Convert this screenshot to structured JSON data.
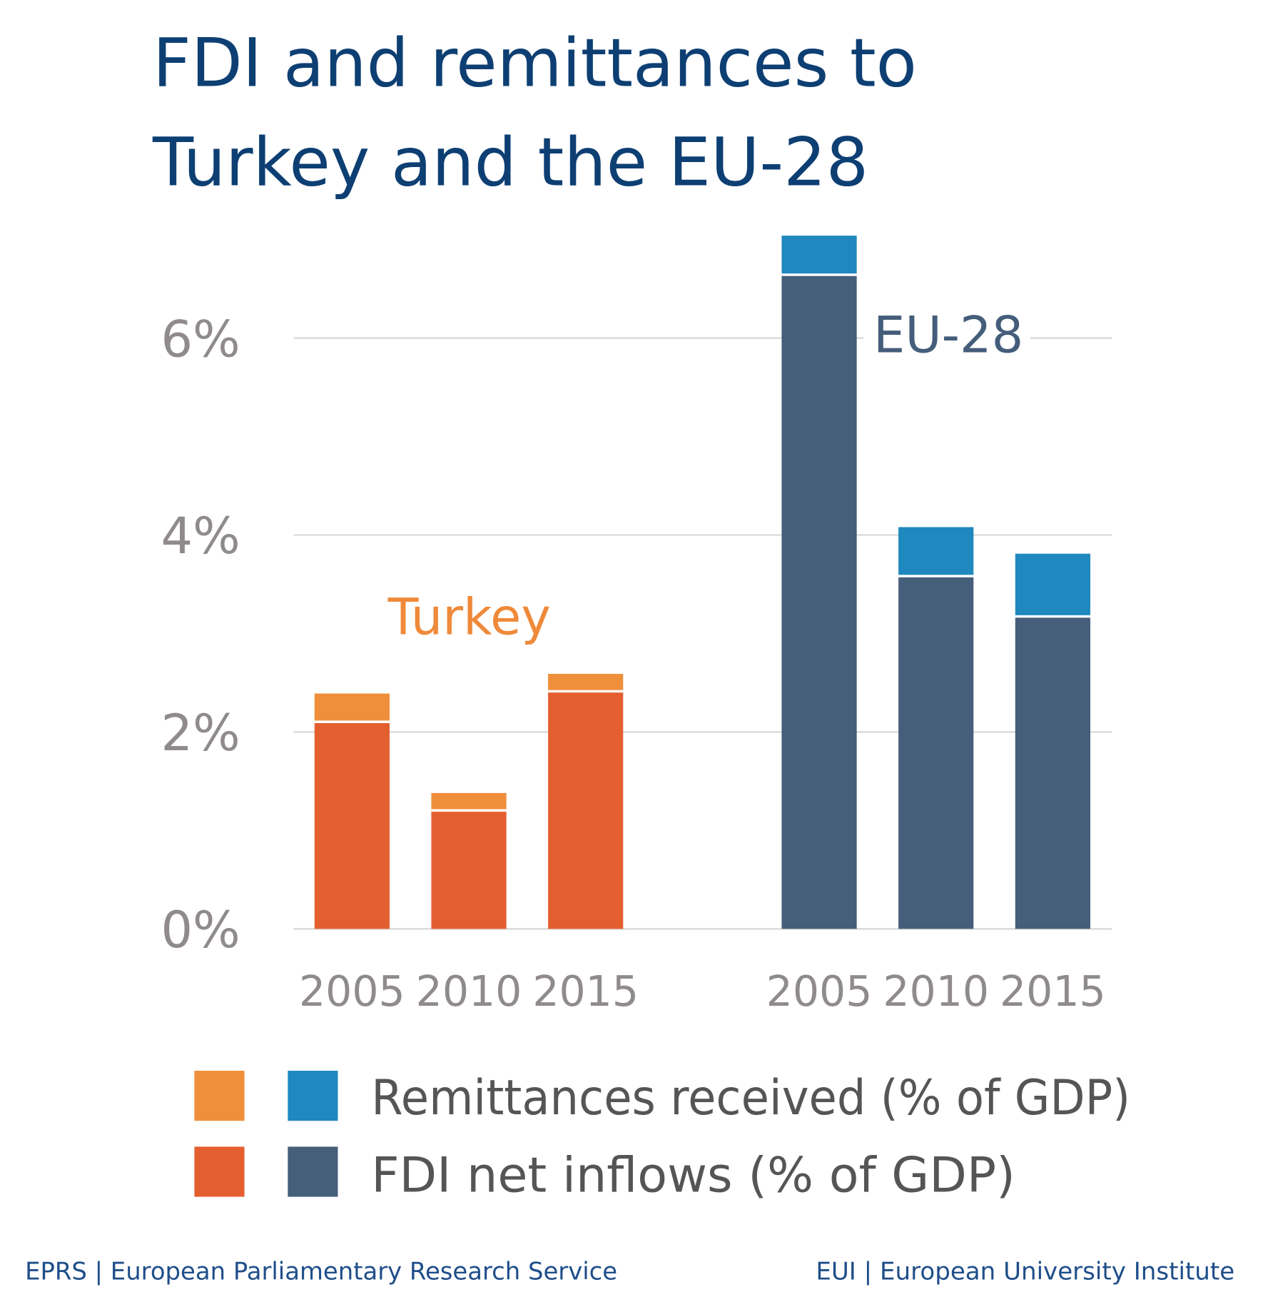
{
  "chart_data": {
    "type": "bar",
    "stacked": true,
    "title_lines": [
      "FDI and remittances to",
      "Turkey and the EU-28"
    ],
    "groups": [
      {
        "name": "Turkey",
        "categories": [
          "2005",
          "2010",
          "2015"
        ],
        "fdi": [
          2.09,
          1.19,
          2.4
        ],
        "remittances": [
          0.3,
          0.19,
          0.19
        ],
        "colors": {
          "fdi": "#e45f30",
          "remittances": "#ef8f3b",
          "label": "#ef8a3a"
        }
      },
      {
        "name": "EU-28",
        "categories": [
          "2005",
          "2010",
          "2015"
        ],
        "fdi": [
          6.63,
          3.57,
          3.16
        ],
        "remittances": [
          0.41,
          0.51,
          0.65
        ],
        "colors": {
          "fdi": "#455e7a",
          "remittances": "#1f88bf",
          "label": "#445d7a"
        }
      }
    ],
    "yticks": [
      "0%",
      "2%",
      "4%",
      "6%"
    ],
    "ytick_values": [
      0,
      2,
      4,
      6
    ],
    "ylim": [
      0,
      7.2
    ],
    "grid": true,
    "legend": {
      "placement": "bottom",
      "entries": [
        "Remittances received (% of GDP)",
        "FDI net inflows (% of GDP)"
      ]
    }
  },
  "footer": {
    "left": "EPRS | European Parliamentary Research Service",
    "right": "EUI | European University Institute"
  }
}
